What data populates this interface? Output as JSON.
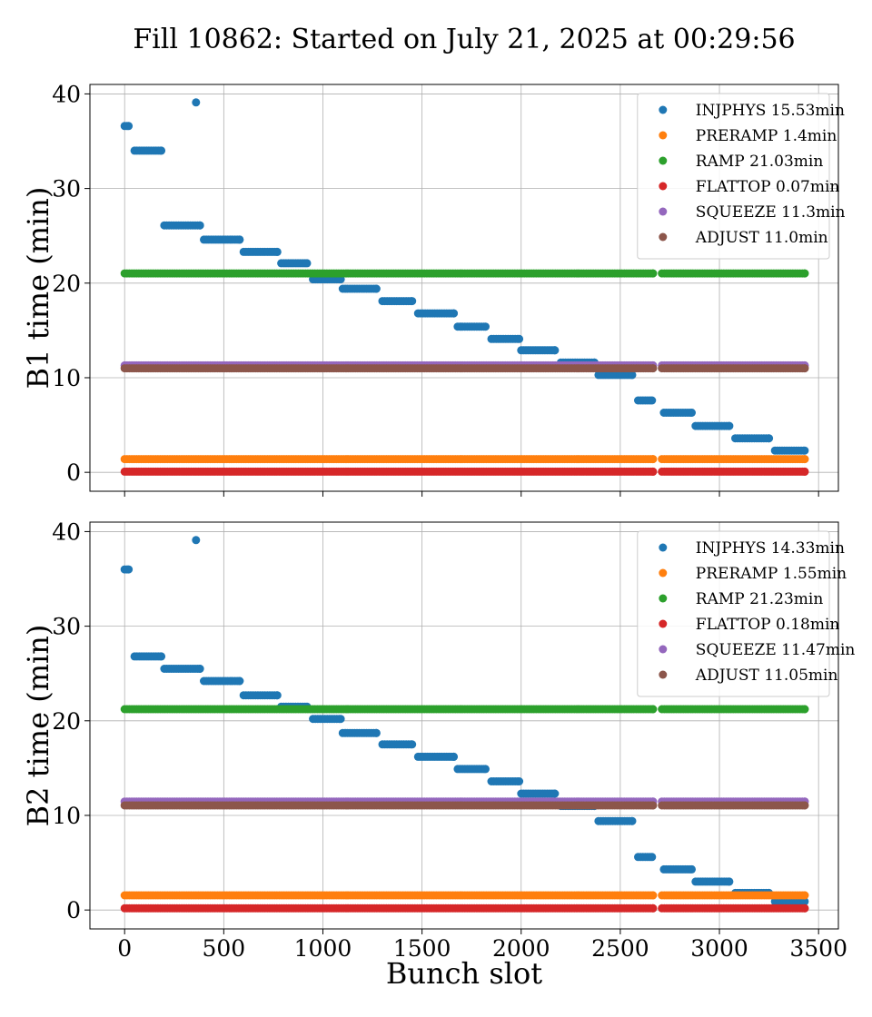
{
  "title": "Fill 10862: Started on July 21, 2025 at 00:29:56",
  "xlabel": "Bunch slot",
  "chart_data": [
    {
      "type": "scatter",
      "ylabel": "B1 time (min)",
      "xlim": [
        -175,
        3600
      ],
      "ylim": [
        -2,
        41
      ],
      "xticks": [
        0,
        500,
        1000,
        1500,
        2000,
        2500,
        3000,
        3500
      ],
      "yticks": [
        0,
        10,
        20,
        30,
        40
      ],
      "grid": true,
      "legend_position": "top-right",
      "series": [
        {
          "name": "INJPHYS 15.53min",
          "color": "#1f77b4",
          "segments": [
            {
              "x": [
                0,
                20
              ],
              "y": 36.6
            },
            {
              "x": [
                50,
                185
              ],
              "y": 34.0
            },
            {
              "x": [
                200,
                380
              ],
              "y": 26.1
            },
            {
              "x": [
                400,
                580
              ],
              "y": 24.6
            },
            {
              "x": [
                600,
                770
              ],
              "y": 23.3
            },
            {
              "x": [
                790,
                920
              ],
              "y": 22.1
            },
            {
              "x": [
                950,
                1090
              ],
              "y": 20.4
            },
            {
              "x": [
                1100,
                1270
              ],
              "y": 19.4
            },
            {
              "x": [
                1300,
                1450
              ],
              "y": 18.1
            },
            {
              "x": [
                1480,
                1660
              ],
              "y": 16.8
            },
            {
              "x": [
                1680,
                1820
              ],
              "y": 15.4
            },
            {
              "x": [
                1850,
                1990
              ],
              "y": 14.1
            },
            {
              "x": [
                2000,
                2170
              ],
              "y": 12.9
            },
            {
              "x": [
                2200,
                2370
              ],
              "y": 11.6
            },
            {
              "x": [
                2390,
                2560
              ],
              "y": 10.3
            },
            {
              "x": [
                2590,
                2660
              ],
              "y": 7.6
            },
            {
              "x": [
                2720,
                2860
              ],
              "y": 6.3
            },
            {
              "x": [
                2880,
                3050
              ],
              "y": 4.9
            },
            {
              "x": [
                3080,
                3250
              ],
              "y": 3.6
            },
            {
              "x": [
                3280,
                3430
              ],
              "y": 2.3
            }
          ],
          "points": [
            {
              "x": 360,
              "y": 39.1
            }
          ]
        },
        {
          "name": "PRERAMP 1.4min",
          "color": "#ff7f0e",
          "y": 1.4,
          "ranges": [
            [
              0,
              2665
            ],
            [
              2710,
              3430
            ]
          ]
        },
        {
          "name": "RAMP 21.03min",
          "color": "#2ca02c",
          "y": 21.03,
          "ranges": [
            [
              0,
              2665
            ],
            [
              2710,
              3430
            ]
          ]
        },
        {
          "name": "FLATTOP 0.07min",
          "color": "#d62728",
          "y": 0.07,
          "ranges": [
            [
              0,
              2665
            ],
            [
              2710,
              3430
            ]
          ]
        },
        {
          "name": "SQUEEZE 11.3min",
          "color": "#9467bd",
          "y": 11.3,
          "ranges": [
            [
              0,
              2665
            ],
            [
              2710,
              3430
            ]
          ]
        },
        {
          "name": "ADJUST 11.0min",
          "color": "#8c564b",
          "y": 11.0,
          "ranges": [
            [
              0,
              2665
            ],
            [
              2710,
              3430
            ]
          ]
        }
      ]
    },
    {
      "type": "scatter",
      "ylabel": "B2 time (min)",
      "xlim": [
        -175,
        3600
      ],
      "ylim": [
        -2,
        41
      ],
      "xticks": [
        0,
        500,
        1000,
        1500,
        2000,
        2500,
        3000,
        3500
      ],
      "yticks": [
        0,
        10,
        20,
        30,
        40
      ],
      "grid": true,
      "legend_position": "top-right",
      "series": [
        {
          "name": "INJPHYS 14.33min",
          "color": "#1f77b4",
          "segments": [
            {
              "x": [
                0,
                20
              ],
              "y": 36.0
            },
            {
              "x": [
                50,
                185
              ],
              "y": 26.8
            },
            {
              "x": [
                200,
                380
              ],
              "y": 25.5
            },
            {
              "x": [
                400,
                580
              ],
              "y": 24.2
            },
            {
              "x": [
                600,
                770
              ],
              "y": 22.7
            },
            {
              "x": [
                790,
                920
              ],
              "y": 21.5
            },
            {
              "x": [
                950,
                1090
              ],
              "y": 20.2
            },
            {
              "x": [
                1100,
                1270
              ],
              "y": 18.7
            },
            {
              "x": [
                1300,
                1450
              ],
              "y": 17.5
            },
            {
              "x": [
                1480,
                1660
              ],
              "y": 16.2
            },
            {
              "x": [
                1680,
                1820
              ],
              "y": 14.9
            },
            {
              "x": [
                1850,
                1990
              ],
              "y": 13.6
            },
            {
              "x": [
                2000,
                2170
              ],
              "y": 12.3
            },
            {
              "x": [
                2200,
                2370
              ],
              "y": 11.0
            },
            {
              "x": [
                2390,
                2560
              ],
              "y": 9.4
            },
            {
              "x": [
                2590,
                2660
              ],
              "y": 5.6
            },
            {
              "x": [
                2720,
                2860
              ],
              "y": 4.3
            },
            {
              "x": [
                2880,
                3050
              ],
              "y": 3.0
            },
            {
              "x": [
                3080,
                3250
              ],
              "y": 1.8
            },
            {
              "x": [
                3280,
                3430
              ],
              "y": 0.9
            }
          ],
          "points": [
            {
              "x": 360,
              "y": 39.1
            }
          ]
        },
        {
          "name": "PRERAMP 1.55min",
          "color": "#ff7f0e",
          "y": 1.55,
          "ranges": [
            [
              0,
              2665
            ],
            [
              2710,
              3430
            ]
          ]
        },
        {
          "name": "RAMP 21.23min",
          "color": "#2ca02c",
          "y": 21.23,
          "ranges": [
            [
              0,
              2665
            ],
            [
              2710,
              3430
            ]
          ]
        },
        {
          "name": "FLATTOP 0.18min",
          "color": "#d62728",
          "y": 0.18,
          "ranges": [
            [
              0,
              2665
            ],
            [
              2710,
              3430
            ]
          ]
        },
        {
          "name": "SQUEEZE 11.47min",
          "color": "#9467bd",
          "y": 11.47,
          "ranges": [
            [
              0,
              2665
            ],
            [
              2710,
              3430
            ]
          ]
        },
        {
          "name": "ADJUST 11.05min",
          "color": "#8c564b",
          "y": 11.05,
          "ranges": [
            [
              0,
              2665
            ],
            [
              2710,
              3430
            ]
          ]
        }
      ]
    }
  ]
}
